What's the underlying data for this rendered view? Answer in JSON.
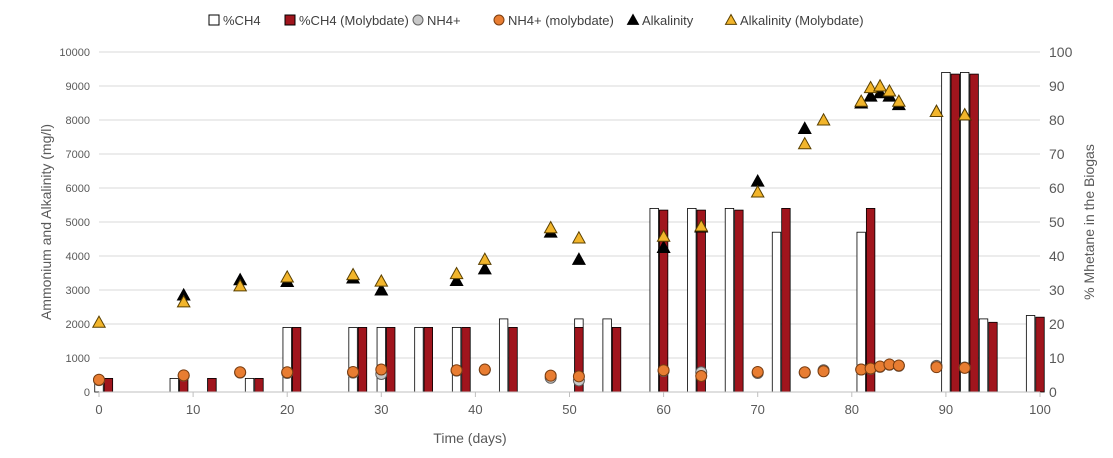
{
  "chart_data": {
    "type": "bar",
    "xlabel": "Time (days)",
    "ylabel": "Ammonium and Alkalinity (mg/l)",
    "y2label": "% Mhetane in the Biogas",
    "xlim": [
      0,
      100
    ],
    "ylim": [
      0,
      10000
    ],
    "y2lim": [
      0,
      100
    ],
    "x_ticks": [
      "0",
      "10",
      "20",
      "30",
      "40",
      "50",
      "60",
      "70",
      "80",
      "90",
      "100"
    ],
    "y_ticks": [
      "0",
      "1000",
      "2000",
      "3000",
      "4000",
      "5000",
      "6000",
      "7000",
      "8000",
      "9000",
      "10000"
    ],
    "y2_ticks": [
      "0",
      "10",
      "20",
      "30",
      "40",
      "50",
      "60",
      "70",
      "80",
      "90",
      "100"
    ],
    "grid": "horizontal",
    "legend_position": "top",
    "colors": {
      "ch4": "#ffffff",
      "ch4_molybdate": "#a0151d",
      "nh4": "#c8c8c8",
      "nh4_molybdate": "#e87d32",
      "alkalinity": "#000000",
      "alkalinity_molybdate": "#f2b52b"
    },
    "series": [
      {
        "name": "%CH4",
        "kind": "bar",
        "axis": "right",
        "points": [
          [
            0,
            4
          ],
          [
            8,
            4
          ],
          [
            12,
            4
          ],
          [
            16,
            4
          ],
          [
            20,
            19
          ],
          [
            27,
            19
          ],
          [
            30,
            19
          ],
          [
            34,
            19
          ],
          [
            38,
            19
          ],
          [
            43,
            21.5
          ],
          [
            51,
            21.5
          ],
          [
            54,
            21.5
          ],
          [
            59,
            54
          ],
          [
            63,
            54
          ],
          [
            67,
            54
          ],
          [
            72,
            47
          ],
          [
            81,
            47
          ],
          [
            90,
            94
          ],
          [
            92,
            94
          ],
          [
            94,
            21.5
          ],
          [
            99,
            22.5
          ]
        ]
      },
      {
        "name": "%CH4 (Molybdate)",
        "kind": "bar",
        "axis": "right",
        "points": [
          [
            1,
            4
          ],
          [
            9,
            4
          ],
          [
            12,
            4
          ],
          [
            17,
            4
          ],
          [
            21,
            19
          ],
          [
            28,
            19
          ],
          [
            31,
            19
          ],
          [
            35,
            19
          ],
          [
            39,
            19
          ],
          [
            44,
            19
          ],
          [
            51,
            19
          ],
          [
            55,
            19
          ],
          [
            60,
            53.5
          ],
          [
            64,
            53.5
          ],
          [
            68,
            53.5
          ],
          [
            73,
            54
          ],
          [
            82,
            54
          ],
          [
            91,
            93.5
          ],
          [
            93,
            93.5
          ],
          [
            95,
            20.5
          ],
          [
            100,
            22
          ]
        ]
      },
      {
        "name": "NH4+",
        "kind": "circle",
        "axis": "left",
        "points": [
          [
            0,
            350
          ],
          [
            9,
            480
          ],
          [
            15,
            570
          ],
          [
            20,
            560
          ],
          [
            27,
            570
          ],
          [
            30,
            530
          ],
          [
            38,
            630
          ],
          [
            41,
            650
          ],
          [
            48,
            420
          ],
          [
            51,
            340
          ],
          [
            60,
            620
          ],
          [
            64,
            580
          ],
          [
            70,
            560
          ],
          [
            75,
            570
          ],
          [
            77,
            640
          ],
          [
            81,
            660
          ],
          [
            82,
            680
          ],
          [
            83,
            740
          ],
          [
            84,
            800
          ],
          [
            85,
            770
          ],
          [
            89,
            770
          ],
          [
            92,
            720
          ]
        ]
      },
      {
        "name": "NH4+ (molybdate)",
        "kind": "circle",
        "axis": "left",
        "points": [
          [
            0,
            360
          ],
          [
            9,
            490
          ],
          [
            15,
            580
          ],
          [
            20,
            580
          ],
          [
            27,
            590
          ],
          [
            30,
            660
          ],
          [
            38,
            640
          ],
          [
            41,
            660
          ],
          [
            48,
            480
          ],
          [
            51,
            460
          ],
          [
            60,
            640
          ],
          [
            64,
            470
          ],
          [
            70,
            590
          ],
          [
            75,
            580
          ],
          [
            77,
            610
          ],
          [
            81,
            660
          ],
          [
            82,
            690
          ],
          [
            83,
            750
          ],
          [
            84,
            810
          ],
          [
            85,
            780
          ],
          [
            89,
            730
          ],
          [
            92,
            710
          ]
        ]
      },
      {
        "name": "Alkalinity",
        "kind": "triangle",
        "axis": "left",
        "points": [
          [
            9,
            2850
          ],
          [
            15,
            3300
          ],
          [
            20,
            3250
          ],
          [
            27,
            3350
          ],
          [
            30,
            3000
          ],
          [
            38,
            3280
          ],
          [
            41,
            3620
          ],
          [
            48,
            4700
          ],
          [
            51,
            3900
          ],
          [
            60,
            4250
          ],
          [
            64,
            4850
          ],
          [
            70,
            6200
          ],
          [
            75,
            7750
          ],
          [
            81,
            8500
          ],
          [
            82,
            8700
          ],
          [
            83,
            8800
          ],
          [
            84,
            8700
          ],
          [
            85,
            8450
          ],
          [
            89,
            8250
          ],
          [
            92,
            8150
          ]
        ]
      },
      {
        "name": "Alkalinity (Molybdate)",
        "kind": "triangle",
        "axis": "left",
        "points": [
          [
            0,
            2050
          ],
          [
            9,
            2650
          ],
          [
            15,
            3120
          ],
          [
            20,
            3380
          ],
          [
            27,
            3450
          ],
          [
            30,
            3260
          ],
          [
            38,
            3480
          ],
          [
            41,
            3900
          ],
          [
            48,
            4830
          ],
          [
            51,
            4530
          ],
          [
            60,
            4580
          ],
          [
            64,
            4880
          ],
          [
            70,
            5880
          ],
          [
            75,
            7300
          ],
          [
            77,
            8000
          ],
          [
            81,
            8550
          ],
          [
            82,
            8950
          ],
          [
            83,
            9000
          ],
          [
            84,
            8850
          ],
          [
            85,
            8550
          ],
          [
            89,
            8250
          ],
          [
            92,
            8150
          ]
        ]
      }
    ]
  }
}
